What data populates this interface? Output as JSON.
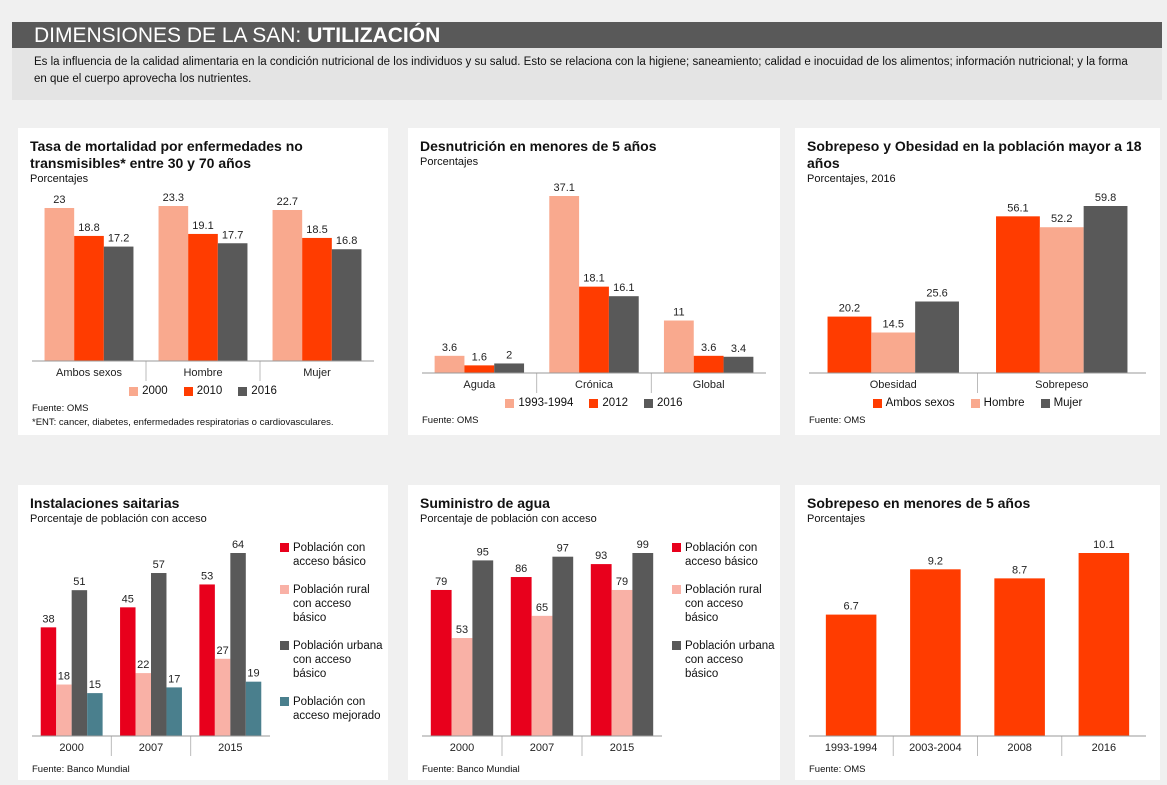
{
  "header": {
    "title_plain": "DIMENSIONES DE LA SAN:",
    "title_bold": "UTILIZACIÓN",
    "description": "Es la influencia de la calidad alimentaria en la condición nutricional de los individuos y su salud. Esto se relaciona con la higiene; saneamiento; calidad e inocuidad de los alimentos; información nutricional; y la forma en que el cuerpo aprovecha los nutrientes."
  },
  "chart_data": [
    {
      "type": "bar",
      "title": "Tasa de mortalidad por enfermedades no transmisibles* entre 30 y 70 años",
      "subtitle": "Porcentajes",
      "categories": [
        "Ambos sexos",
        "Hombre",
        "Mujer"
      ],
      "series": [
        {
          "name": "2000",
          "color": "#f9a98e",
          "values": [
            23,
            23.3,
            22.7
          ]
        },
        {
          "name": "2010",
          "color": "#ff3c00",
          "values": [
            18.8,
            19.1,
            18.5
          ]
        },
        {
          "name": "2016",
          "color": "#595959",
          "values": [
            17.2,
            17.7,
            16.8
          ]
        }
      ],
      "legend": "bottom",
      "source": "Fuente: OMS",
      "note": "*ENT: cancer, diabetes, enfermedades respiratorias o cardiovasculares."
    },
    {
      "type": "bar",
      "title": "Desnutrición en menores de 5 años",
      "subtitle": "Porcentajes",
      "categories": [
        "Aguda",
        "Crónica",
        "Global"
      ],
      "series": [
        {
          "name": "1993-1994",
          "color": "#f9a98e",
          "values": [
            3.6,
            37.1,
            11
          ]
        },
        {
          "name": "2012",
          "color": "#ff3c00",
          "values": [
            1.6,
            18.1,
            3.6
          ]
        },
        {
          "name": "2016",
          "color": "#595959",
          "values": [
            2,
            16.1,
            3.4
          ]
        }
      ],
      "legend": "bottom",
      "source": "Fuente: OMS"
    },
    {
      "type": "bar",
      "title": "Sobrepeso y Obesidad en la población mayor a 18 años",
      "subtitle": "Porcentajes, 2016",
      "categories": [
        "Obesidad",
        "Sobrepeso"
      ],
      "series": [
        {
          "name": "Ambos sexos",
          "color": "#ff3c00",
          "values": [
            20.2,
            56.1
          ]
        },
        {
          "name": "Hombre",
          "color": "#f9a98e",
          "values": [
            14.5,
            52.2
          ]
        },
        {
          "name": "Mujer",
          "color": "#595959",
          "values": [
            25.6,
            59.8
          ]
        }
      ],
      "legend": "bottom",
      "source": "Fuente: OMS"
    },
    {
      "type": "bar",
      "title": "Instalaciones saitarias",
      "subtitle": "Porcentaje de población con acceso",
      "categories": [
        "2000",
        "2007",
        "2015"
      ],
      "series": [
        {
          "name": "Población con acceso básico",
          "color": "#e8001c",
          "values": [
            38,
            45,
            53
          ]
        },
        {
          "name": "Población rural con acceso básico",
          "color": "#f9b1a6",
          "values": [
            18,
            22,
            27
          ]
        },
        {
          "name": "Población urbana con acceso básico",
          "color": "#595959",
          "values": [
            51,
            57,
            64
          ]
        },
        {
          "name": "Población con acceso mejorado",
          "color": "#4a7f8d",
          "values": [
            15,
            17,
            19
          ]
        }
      ],
      "legend": "right",
      "source": "Fuente: Banco Mundial"
    },
    {
      "type": "bar",
      "title": "Suministro de agua",
      "subtitle": "Porcentaje de población con acceso",
      "categories": [
        "2000",
        "2007",
        "2015"
      ],
      "series": [
        {
          "name": "Población con acceso básico",
          "color": "#e8001c",
          "values": [
            79,
            86,
            93
          ]
        },
        {
          "name": "Población rural con acceso básico",
          "color": "#f9b1a6",
          "values": [
            53,
            65,
            79
          ]
        },
        {
          "name": "Población urbana con acceso básico",
          "color": "#595959",
          "values": [
            95,
            97,
            99
          ]
        }
      ],
      "legend": "right",
      "source": "Fuente: Banco Mundial"
    },
    {
      "type": "bar",
      "title": "Sobrepeso en menores de 5 años",
      "subtitle": "Porcentajes",
      "categories": [
        "1993-1994",
        "2003-2004",
        "2008",
        "2016"
      ],
      "series": [
        {
          "color": "#ff3c00",
          "values": [
            6.7,
            9.2,
            8.7,
            10.1
          ]
        }
      ],
      "source": "Fuente: OMS"
    }
  ]
}
